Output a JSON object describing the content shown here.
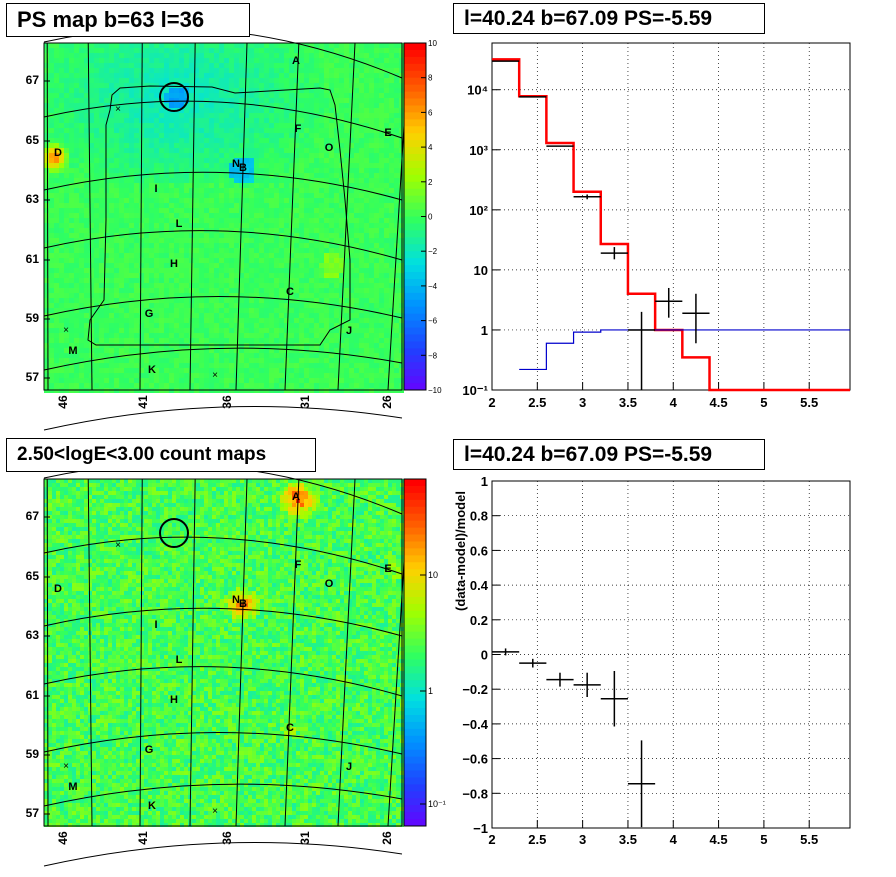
{
  "chart_data": [
    {
      "type": "heatmap",
      "title": "PS map b=63 l=36",
      "x_ticks": [
        "46",
        "41",
        "36",
        "31",
        "26"
      ],
      "y_ticks": [
        "67",
        "65",
        "63",
        "61",
        "59",
        "57"
      ],
      "colorbar_ticks": [
        "10",
        "8",
        "6",
        "4",
        "2",
        "0",
        "−2",
        "−4",
        "−6",
        "−8",
        "−10"
      ],
      "colorbar_range": [
        -10,
        10
      ],
      "source_labels": [
        "A",
        "F",
        "E",
        "O",
        "D",
        "N",
        "B",
        "I",
        "L",
        "H",
        "C",
        "G",
        "J",
        "M",
        "K"
      ],
      "colormap": [
        "#6a00ff",
        "#2040ff",
        "#0090ff",
        "#00e0e0",
        "#30ff60",
        "#a0ff00",
        "#ffd000",
        "#ff6000",
        "#ff0000"
      ]
    },
    {
      "type": "line",
      "title": "l=40.24 b=67.09 PS=-5.59",
      "x_ticks": [
        "2",
        "2.5",
        "3",
        "3.5",
        "4",
        "4.5",
        "5",
        "5.5"
      ],
      "y_ticks": [
        "10⁻¹",
        "1",
        "10",
        "10²",
        "10³",
        "10⁴"
      ],
      "xlim": [
        2,
        5.95
      ],
      "ylim": [
        0.1,
        60000
      ],
      "yscale": "log",
      "grid": true,
      "series": [
        {
          "color": "#ff0000",
          "edges": [
            2,
            2.3,
            2.6,
            2.9,
            3.2,
            3.5,
            3.8,
            4.1,
            4.4,
            5.95
          ],
          "values": [
            32000,
            7800,
            1300,
            200,
            27,
            4,
            1,
            0.35,
            0.1
          ]
        },
        {
          "color": "#0000cc",
          "edges": [
            2.3,
            2.6,
            2.9,
            3.2,
            3.5,
            3.8,
            4.1,
            4.4,
            5.95
          ],
          "values": [
            0.22,
            0.6,
            0.92,
            1.0,
            1.0,
            1.0,
            1.0,
            1.0
          ]
        }
      ],
      "points": [
        {
          "x": 2.15,
          "y": 30000
        },
        {
          "x": 2.45,
          "y": 7600
        },
        {
          "x": 2.75,
          "y": 1150
        },
        {
          "x": 3.05,
          "y": 165,
          "ylo": 150,
          "yhi": 180
        },
        {
          "x": 3.35,
          "y": 19,
          "ylo": 15,
          "yhi": 24
        },
        {
          "x": 3.65,
          "y": 1,
          "ylo": 0.05,
          "yhi": 2.0
        },
        {
          "x": 3.95,
          "y": 3,
          "ylo": 1.6,
          "yhi": 5.0
        },
        {
          "x": 4.25,
          "y": 1.9,
          "ylo": 0.6,
          "yhi": 4.0
        }
      ]
    },
    {
      "type": "heatmap",
      "title": "2.50<logE<3.00 count maps",
      "x_ticks": [
        "46",
        "41",
        "36",
        "31",
        "26"
      ],
      "y_ticks": [
        "67",
        "65",
        "63",
        "61",
        "59",
        "57"
      ],
      "colorbar_ticks": [
        "10",
        "1",
        "10⁻¹"
      ],
      "colorbar_scale": "log",
      "source_labels": [
        "A",
        "F",
        "E",
        "O",
        "D",
        "N",
        "B",
        "I",
        "L",
        "H",
        "C",
        "G",
        "J",
        "M",
        "K"
      ],
      "colormap": [
        "#6a00ff",
        "#2040ff",
        "#0090ff",
        "#00e0e0",
        "#30ff60",
        "#a0ff00",
        "#ffd000",
        "#ff6000",
        "#ff0000"
      ]
    },
    {
      "type": "scatter",
      "title": "l=40.24 b=67.09 PS=-5.59",
      "ylabel": "(data-model)/model",
      "x_ticks": [
        "2",
        "2.5",
        "3",
        "3.5",
        "4",
        "4.5",
        "5",
        "5.5"
      ],
      "y_ticks": [
        "−1",
        "−0.8",
        "−0.6",
        "−0.4",
        "−0.2",
        "0",
        "0.2",
        "0.4",
        "0.6",
        "0.8",
        "1"
      ],
      "xlim": [
        2,
        5.95
      ],
      "ylim": [
        -1,
        1
      ],
      "grid": true,
      "points": [
        {
          "x": 2.15,
          "y": 0.015,
          "xerr": 0.15,
          "yerr": 0.02
        },
        {
          "x": 2.45,
          "y": -0.05,
          "xerr": 0.15,
          "yerr": 0.025
        },
        {
          "x": 2.75,
          "y": -0.145,
          "xerr": 0.15,
          "yerr": 0.04
        },
        {
          "x": 3.05,
          "y": -0.175,
          "xerr": 0.15,
          "yerr": 0.07
        },
        {
          "x": 3.35,
          "y": -0.255,
          "xerr": 0.15,
          "yerr": 0.16
        },
        {
          "x": 3.65,
          "y": -0.745,
          "xerr": 0.15,
          "yerr": 0.25
        }
      ]
    }
  ]
}
